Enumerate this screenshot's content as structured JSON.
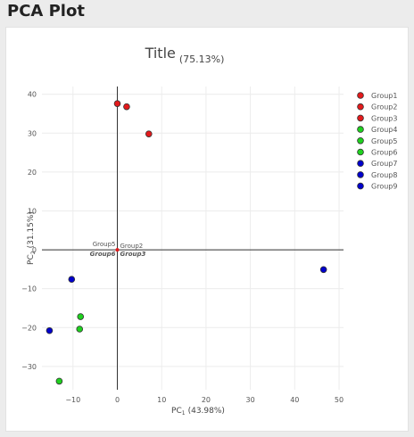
{
  "page": {
    "heading": "PCA Plot"
  },
  "chart_data": {
    "type": "scatter",
    "title": "Title",
    "title_note": "(75.13%)",
    "xlabel": "PC",
    "xlabel_sub": "1",
    "xlabel_pct": "(43.98%)",
    "ylabel": "PC",
    "ylabel_sub": "2",
    "ylabel_pct": "(31.15%)",
    "xlim": [
      -17,
      51
    ],
    "ylim": [
      -36,
      42
    ],
    "xticks": [
      -10,
      0,
      10,
      20,
      30,
      40,
      50
    ],
    "yticks": [
      -30,
      -20,
      -10,
      0,
      10,
      20,
      30,
      40
    ],
    "grid": true,
    "legend_position": "right",
    "series": [
      {
        "name": "Group1",
        "color": "#e31a1c",
        "points": [
          [
            0,
            37.6
          ]
        ]
      },
      {
        "name": "Group2",
        "color": "#e31a1c",
        "points": [
          [
            2.1,
            36.8
          ]
        ]
      },
      {
        "name": "Group3",
        "color": "#e31a1c",
        "points": [
          [
            7.1,
            29.8
          ]
        ]
      },
      {
        "name": "Group4",
        "color": "#1fd11f",
        "points": [
          [
            -8.3,
            -17.2
          ]
        ]
      },
      {
        "name": "Group5",
        "color": "#1fd11f",
        "points": [
          [
            -8.5,
            -20.4
          ]
        ]
      },
      {
        "name": "Group6",
        "color": "#1fd11f",
        "points": [
          [
            -13.1,
            -33.8
          ]
        ]
      },
      {
        "name": "Group7",
        "color": "#0000cc",
        "points": [
          [
            -10.3,
            -7.6
          ]
        ]
      },
      {
        "name": "Group8",
        "color": "#0000cc",
        "points": [
          [
            46.5,
            -5.1
          ]
        ]
      },
      {
        "name": "Group9",
        "color": "#0000cc",
        "points": [
          [
            -15.3,
            -20.8
          ]
        ]
      }
    ],
    "origin_annotations": [
      {
        "text": "Group5",
        "bold": false,
        "anchor": "end",
        "dy": -4
      },
      {
        "text": "Group2",
        "bold": false,
        "anchor": "start",
        "dy": -2
      },
      {
        "text": "Group6",
        "bold": true,
        "anchor": "end",
        "dy": 7
      },
      {
        "text": "Group3",
        "bold": true,
        "anchor": "start",
        "dy": 7
      }
    ]
  }
}
